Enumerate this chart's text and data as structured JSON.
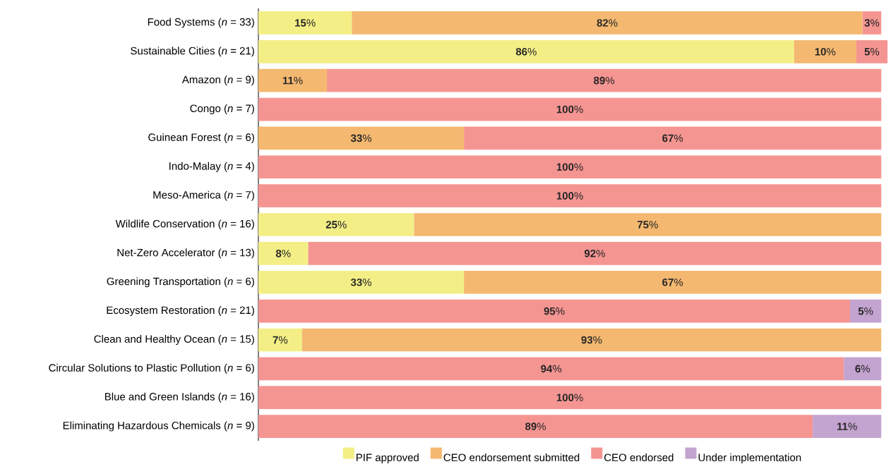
{
  "chart_data": {
    "type": "bar",
    "orientation": "horizontal",
    "stacked": true,
    "xlim": [
      0,
      101
    ],
    "tick_labels": "y",
    "legend": "bottom",
    "categories": [
      "Food Systems (*n* = 33)",
      "Sustainable Cities (*n* = 21)",
      "Amazon (*n* = 9)",
      "Congo (*n* = 7)",
      "Guinean Forest (*n* = 6)",
      "Indo-Malay (*n* = 4)",
      "Meso-America (*n* = 7)",
      "Wildlife Conservation (*n* = 16)",
      "Net-Zero Accelerator (*n* = 13)",
      "Greening Transportation (*n* = 6)",
      "Ecosystem Restoration (*n* = 21)",
      "Clean and Healthy Ocean (*n* = 15)",
      "Circular Solutions to Plastic Pollution (*n* = 6)",
      "Blue and Green Islands (*n* = 16)",
      "Eliminating Hazardous Chemicals (*n* = 9)"
    ],
    "series": [
      {
        "name": "PIF approved",
        "color": "#f3ef86",
        "values": [
          15,
          86,
          null,
          null,
          null,
          null,
          null,
          25,
          8,
          33,
          null,
          7,
          null,
          null,
          null
        ],
        "value_labels": [
          "**15**%",
          "**86**%",
          null,
          null,
          null,
          null,
          null,
          "**25**%",
          "**8**%",
          "**33**%",
          null,
          "**7**%",
          null,
          null,
          null
        ]
      },
      {
        "name": "CEO endorsement submitted",
        "color": "#f4b870",
        "values": [
          82,
          10,
          11,
          null,
          33,
          null,
          null,
          75,
          null,
          67,
          null,
          93,
          null,
          null,
          null
        ],
        "value_labels": [
          "**82**%",
          "**10**%",
          "**11**%",
          null,
          "**33**%",
          null,
          null,
          "**75**%",
          null,
          "**67**%",
          null,
          "**93**%",
          null,
          null,
          null
        ]
      },
      {
        "name": "CEO endorsed",
        "color": "#f59592",
        "values": [
          3,
          5,
          89,
          100,
          67,
          100,
          100,
          null,
          92,
          null,
          95,
          null,
          94,
          100,
          89
        ],
        "value_labels": [
          "**3**%",
          "**5**%",
          "**89**%",
          "**100**%",
          "**67**%",
          "**100**%",
          "**100**%",
          null,
          "**92**%",
          null,
          "**95**%",
          null,
          "**94**%",
          "**100**%",
          "**89**%"
        ]
      },
      {
        "name": "Under implementation",
        "color": "#c3a3cf",
        "values": [
          null,
          null,
          null,
          null,
          null,
          null,
          null,
          null,
          null,
          null,
          5,
          null,
          6,
          null,
          11
        ],
        "value_labels": [
          null,
          null,
          null,
          null,
          null,
          null,
          null,
          null,
          null,
          null,
          "**5**%",
          null,
          "**6**%",
          null,
          "**11**%"
        ]
      }
    ]
  }
}
